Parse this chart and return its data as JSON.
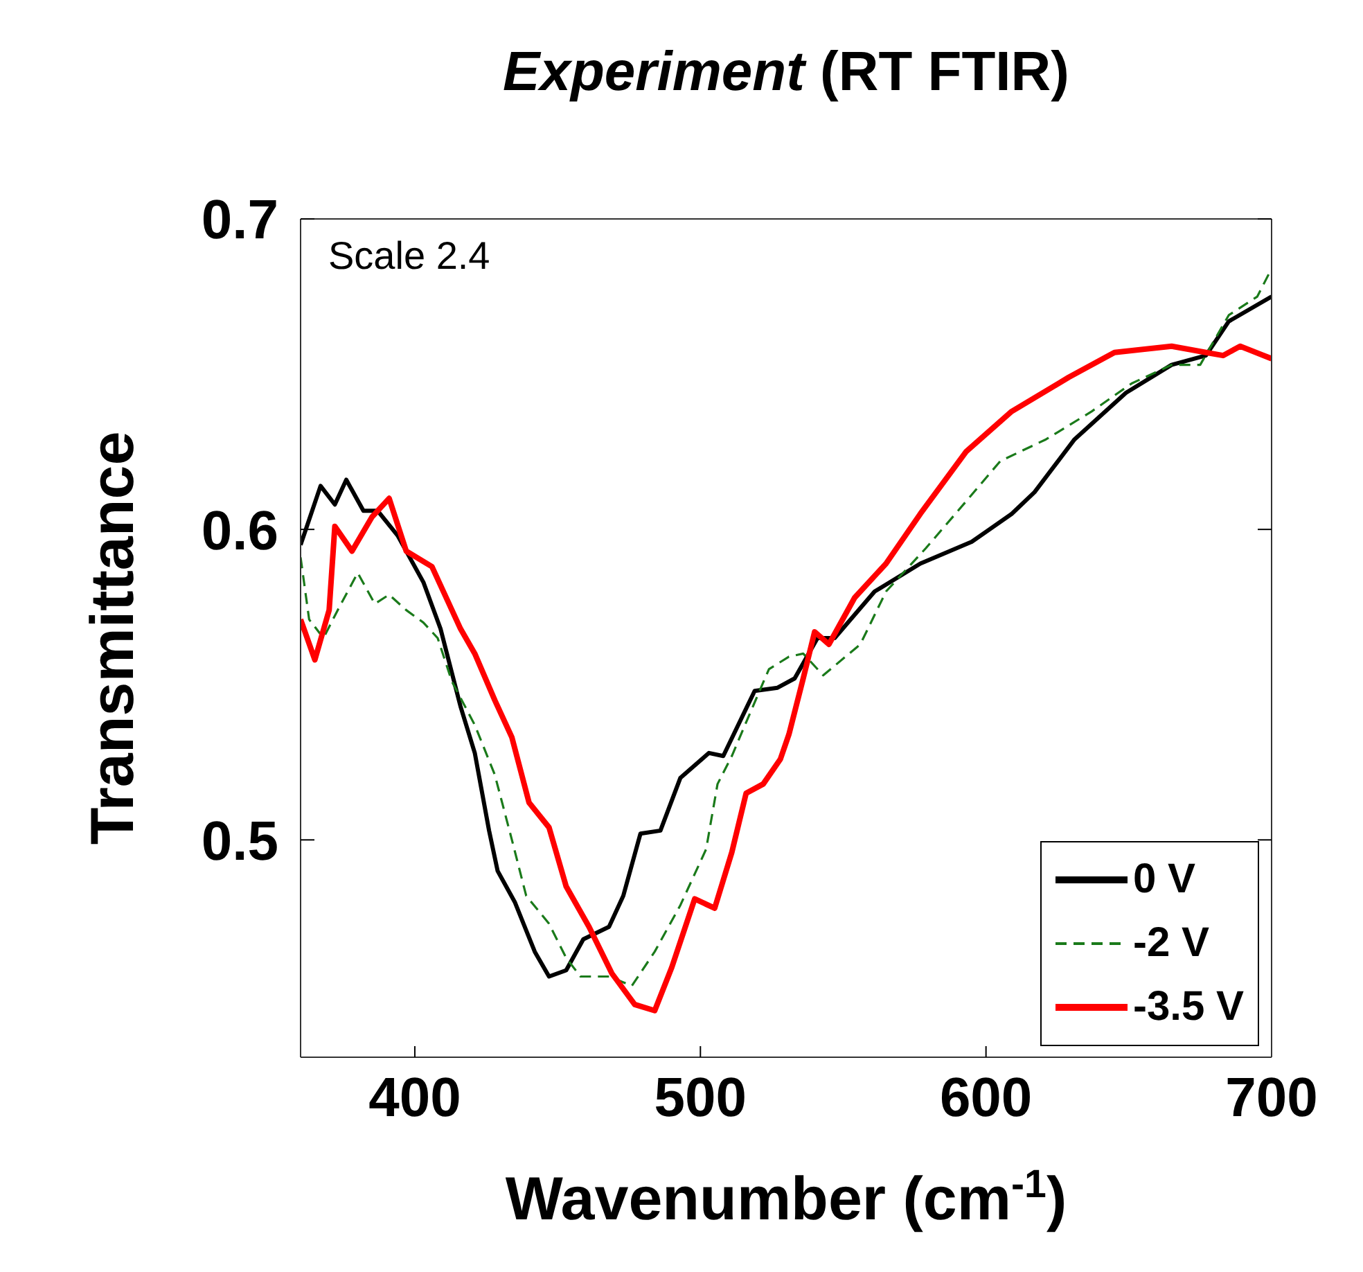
{
  "chart_data": {
    "type": "line",
    "title": "Experiment (RT FTIR)",
    "xlabel": "Wavenumber (cm$^{-1}$)",
    "ylabel": "Transmittance",
    "annotations": [
      "Scale 2.4"
    ],
    "xlim": [
      360,
      700
    ],
    "ylim": [
      0.43,
      0.7
    ],
    "xticks": [
      400,
      500,
      600,
      700
    ],
    "yticks": [
      0.5,
      0.6,
      0.7
    ],
    "legend": "bottom right",
    "marker": "none",
    "series": [
      {
        "name": "0 V",
        "color": "#000000",
        "line_style": "solid",
        "x": [
          360,
          367,
          372,
          376,
          382,
          387,
          394,
          403,
          409,
          416,
          421,
          426,
          429,
          435,
          442,
          447,
          453,
          459,
          468,
          473,
          479,
          486,
          493,
          503,
          508,
          519,
          527,
          533,
          541,
          547,
          561,
          577,
          595,
          609,
          617,
          631,
          649,
          665,
          677,
          685,
          700
        ],
        "values": [
          0.595,
          0.614,
          0.608,
          0.616,
          0.606,
          0.606,
          0.598,
          0.583,
          0.568,
          0.543,
          0.528,
          0.503,
          0.49,
          0.48,
          0.464,
          0.456,
          0.458,
          0.468,
          0.472,
          0.482,
          0.502,
          0.503,
          0.52,
          0.528,
          0.527,
          0.548,
          0.549,
          0.552,
          0.565,
          0.565,
          0.58,
          0.589,
          0.596,
          0.605,
          0.612,
          0.629,
          0.644,
          0.653,
          0.656,
          0.667,
          0.675
        ]
      },
      {
        "name": "-2 V",
        "color": "#1a7a1a",
        "line_style": "dashed",
        "x": [
          360,
          363,
          368,
          373,
          380,
          386,
          391,
          397,
          403,
          408,
          413,
          421,
          428,
          434,
          439,
          447,
          453,
          458,
          468,
          476,
          484,
          493,
          502,
          506,
          511,
          517,
          524,
          531,
          536,
          543,
          556,
          565,
          579,
          593,
          605,
          621,
          637,
          651,
          665,
          675,
          685,
          695,
          700
        ],
        "values": [
          0.591,
          0.571,
          0.565,
          0.574,
          0.586,
          0.576,
          0.579,
          0.574,
          0.57,
          0.565,
          0.551,
          0.537,
          0.521,
          0.5,
          0.482,
          0.473,
          0.462,
          0.456,
          0.456,
          0.453,
          0.464,
          0.479,
          0.497,
          0.518,
          0.527,
          0.54,
          0.555,
          0.559,
          0.56,
          0.553,
          0.563,
          0.58,
          0.594,
          0.609,
          0.622,
          0.629,
          0.638,
          0.647,
          0.653,
          0.653,
          0.669,
          0.675,
          0.684
        ]
      },
      {
        "name": "-3.5 V",
        "color": "#ff0000",
        "line_style": "solid",
        "x": [
          360,
          365,
          370,
          372,
          378,
          385,
          391,
          397,
          406,
          416,
          421,
          428,
          434,
          440,
          447,
          453,
          461,
          469,
          477,
          484,
          490,
          498,
          505,
          511,
          516,
          522,
          528,
          531,
          536,
          540,
          545,
          554,
          565,
          577,
          593,
          609,
          629,
          645,
          665,
          677,
          683,
          689,
          700
        ],
        "values": [
          0.571,
          0.558,
          0.574,
          0.601,
          0.593,
          0.604,
          0.61,
          0.593,
          0.588,
          0.568,
          0.56,
          0.545,
          0.533,
          0.512,
          0.504,
          0.485,
          0.472,
          0.457,
          0.447,
          0.445,
          0.459,
          0.481,
          0.478,
          0.496,
          0.515,
          0.518,
          0.526,
          0.534,
          0.552,
          0.567,
          0.563,
          0.578,
          0.589,
          0.605,
          0.625,
          0.638,
          0.649,
          0.657,
          0.659,
          0.657,
          0.656,
          0.659,
          0.655
        ]
      }
    ]
  }
}
